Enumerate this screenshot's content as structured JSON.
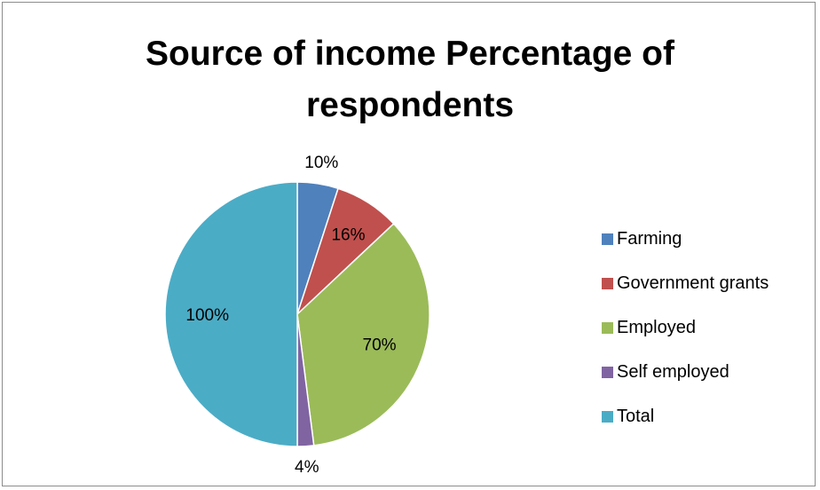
{
  "chart_data": {
    "type": "pie",
    "title": "Source of income Percentage of respondents",
    "title_lines": [
      "Source of income Percentage of",
      "respondents"
    ],
    "categories": [
      "Farming",
      "Government grants",
      "Employed",
      "Self employed",
      "Total"
    ],
    "values": [
      10,
      16,
      70,
      4,
      100
    ],
    "data_labels": [
      "10%",
      "16%",
      "70%",
      "4%",
      "100%"
    ],
    "colors": [
      "#4F81BD",
      "#C0504D",
      "#9BBB59",
      "#8064A2",
      "#4BACC6"
    ],
    "legend_position": "right"
  }
}
